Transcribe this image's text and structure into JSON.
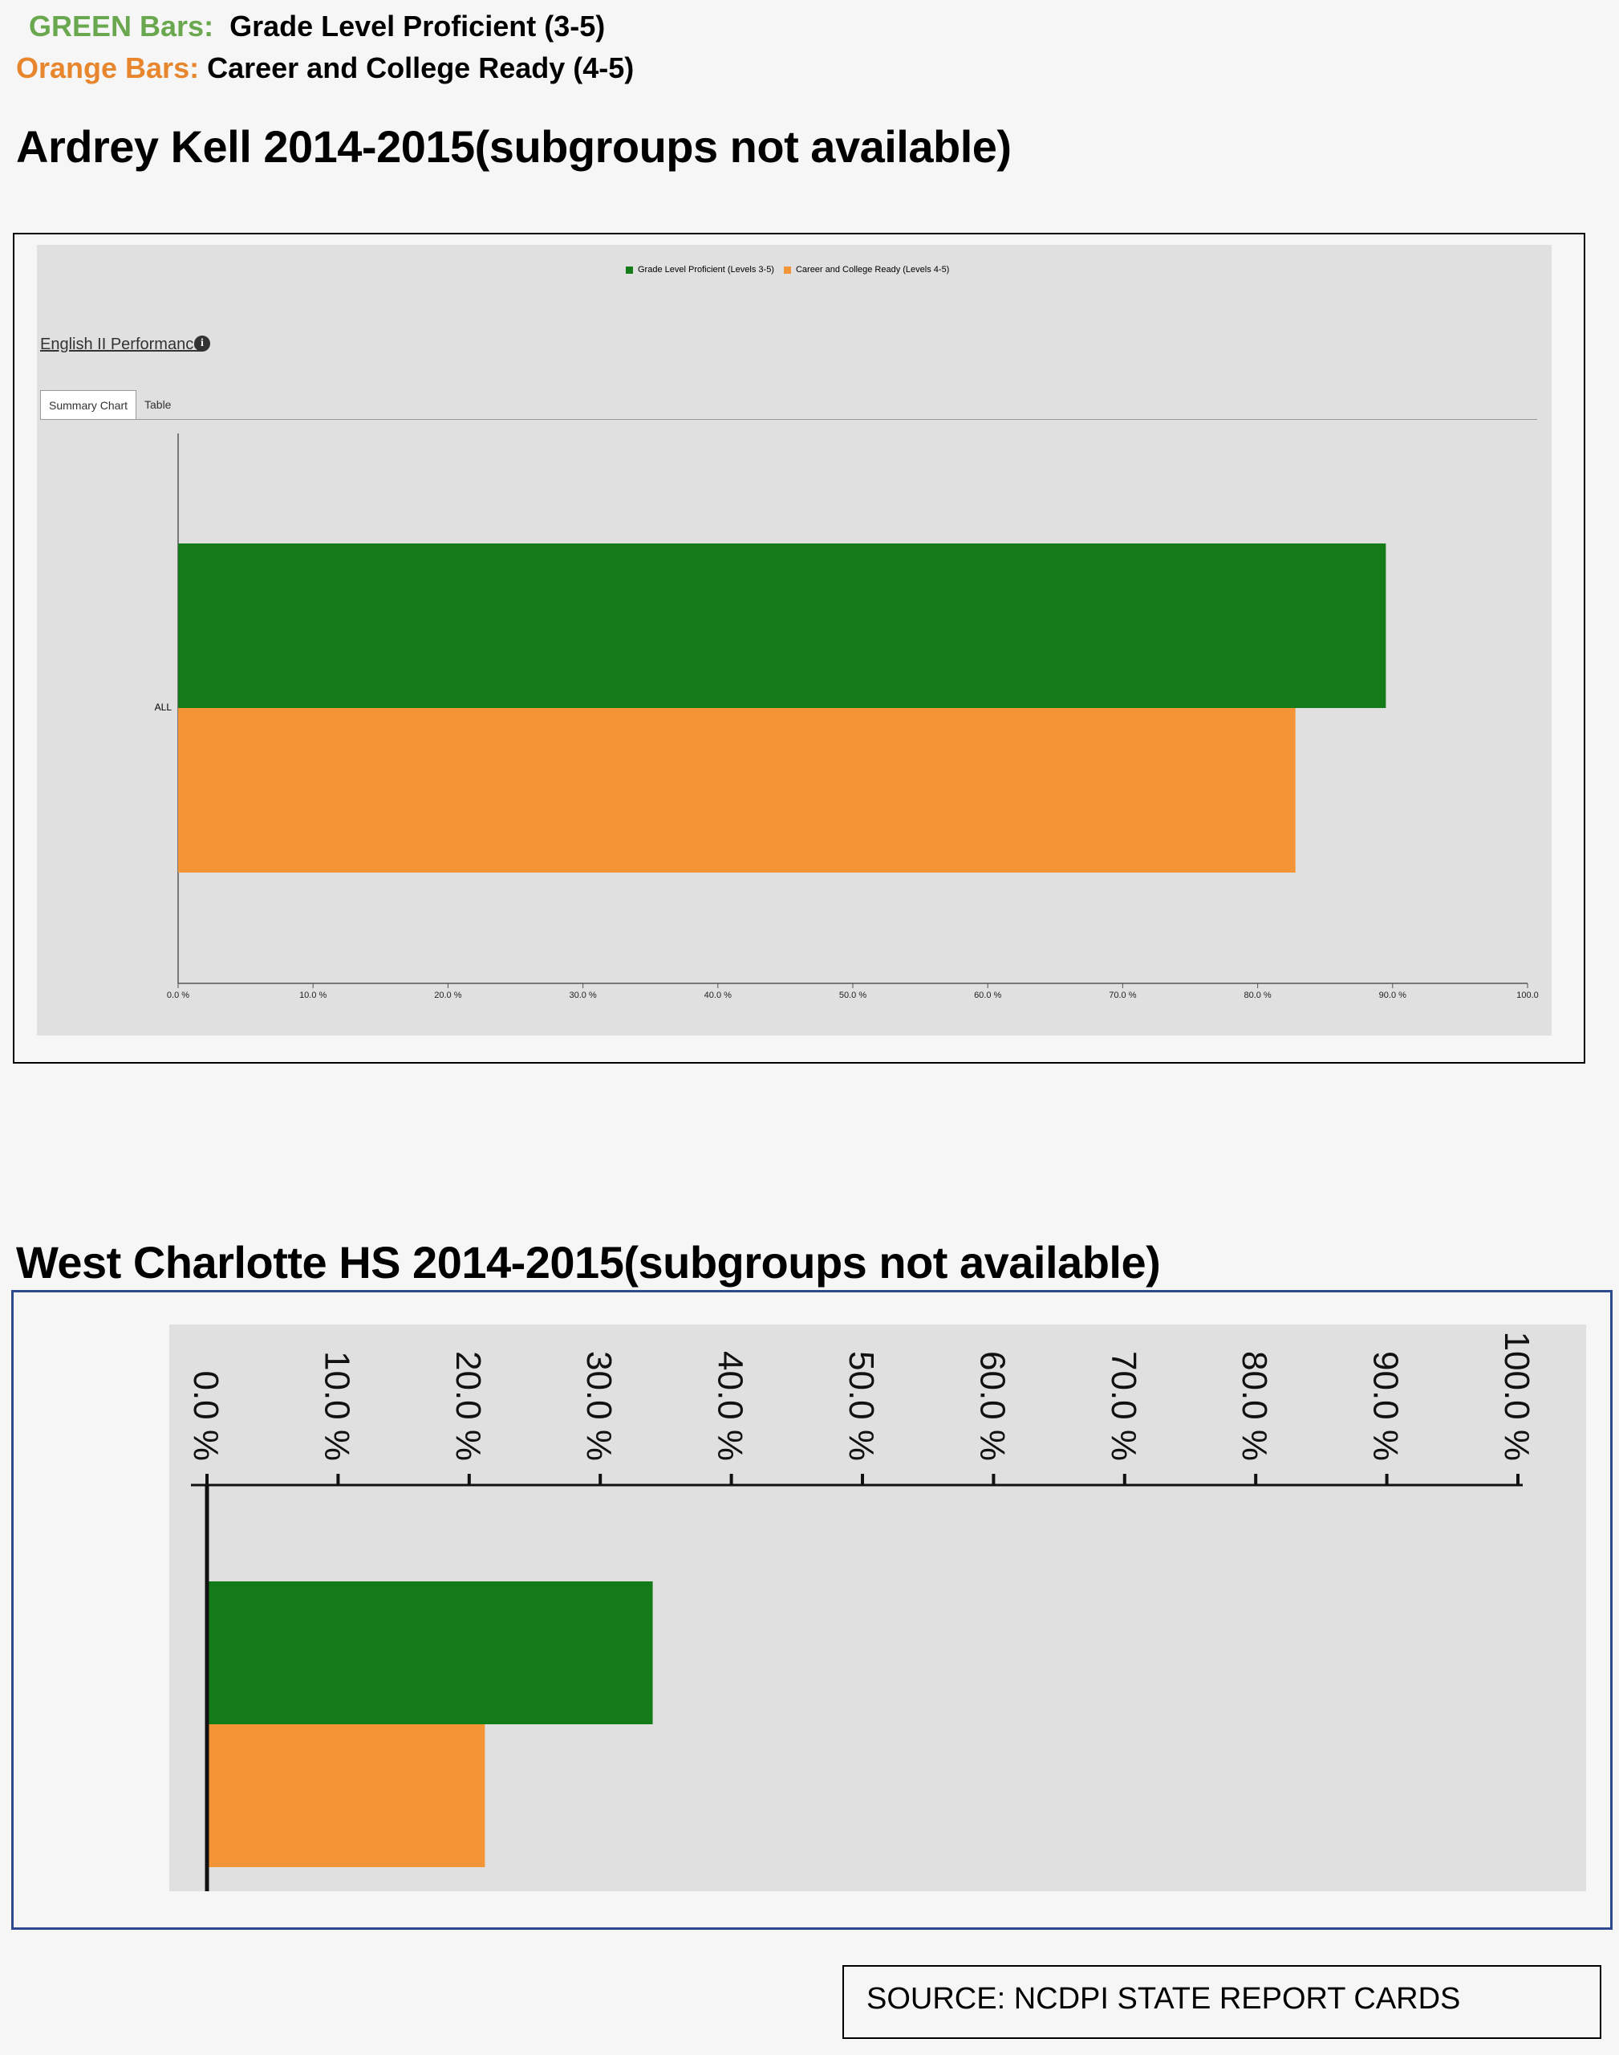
{
  "legend": {
    "green_key": "GREEN Bars:",
    "green_text": "Grade Level Proficient (3-5)",
    "orange_key": "Orange Bars:",
    "orange_text": "Career and College Ready (4-5)"
  },
  "colors": {
    "green_key_text": "#6aa84f",
    "orange_key_text": "#e8862e",
    "bar_green": "#137c18",
    "bar_orange": "#f39436",
    "panel_bg": "#e0e0e0",
    "page_bg": "#f6f6f6"
  },
  "section1": {
    "heading": "Ardrey Kell 2014-2015(subgroups not available)",
    "inner_legend": [
      "Grade Level Proficient (Levels 3-5)",
      "Career and College Ready (Levels 4-5)"
    ],
    "perf_link": "English II Performance",
    "info_icon": "info-icon",
    "tabs": [
      "Summary Chart",
      "Table"
    ],
    "active_tab": "Summary Chart"
  },
  "section2": {
    "heading": "West Charlotte HS  2014-2015(subgroups not available)"
  },
  "source": "SOURCE:  NCDPI STATE REPORT CARDS",
  "chart_data": [
    {
      "type": "bar",
      "orientation": "horizontal",
      "categories": [
        "ALL"
      ],
      "series": [
        {
          "name": "Grade Level Proficient (Levels 3-5)",
          "values": [
            89.5
          ]
        },
        {
          "name": "Career and College Ready (Levels 4-5)",
          "values": [
            82.8
          ]
        }
      ],
      "xlim": [
        0,
        100
      ],
      "xticks": [
        "0.0 %",
        "10.0 %",
        "20.0 %",
        "30.0 %",
        "40.0 %",
        "50.0 %",
        "60.0 %",
        "70.0 %",
        "80.0 %",
        "90.0 %",
        "100.0"
      ],
      "legend_position": "top-center",
      "grid": false
    },
    {
      "type": "bar",
      "orientation": "horizontal",
      "categories": [
        ""
      ],
      "series": [
        {
          "values": [
            34.0
          ]
        },
        {
          "values": [
            21.2
          ]
        }
      ],
      "xlim": [
        0,
        100
      ],
      "xticks": [
        "0.0 %",
        "10.0 %",
        "20.0 %",
        "30.0 %",
        "40.0 %",
        "50.0 %",
        "60.0 %",
        "70.0 %",
        "80.0 %",
        "90.0 %",
        "100.0 %"
      ],
      "axis_position": "top",
      "tick_label_rotation": "90",
      "grid": false
    }
  ]
}
